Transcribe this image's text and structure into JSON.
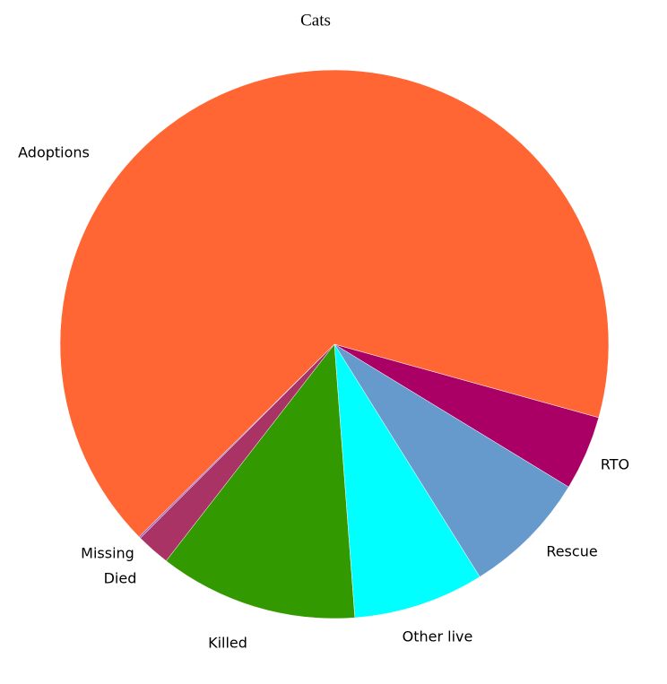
{
  "chart_data": {
    "type": "pie",
    "title": "Cats",
    "categories": [
      "Adoptions",
      "RTO",
      "Rescue",
      "Other live",
      "Killed",
      "Died",
      "Missing"
    ],
    "values": [
      66.7,
      4.4,
      7.4,
      7.7,
      11.7,
      2.0,
      0.1
    ],
    "colors": [
      "#ff6633",
      "#aa0066",
      "#6699cc",
      "#00ffff",
      "#339900",
      "#aa3366",
      "#9966cc"
    ]
  }
}
